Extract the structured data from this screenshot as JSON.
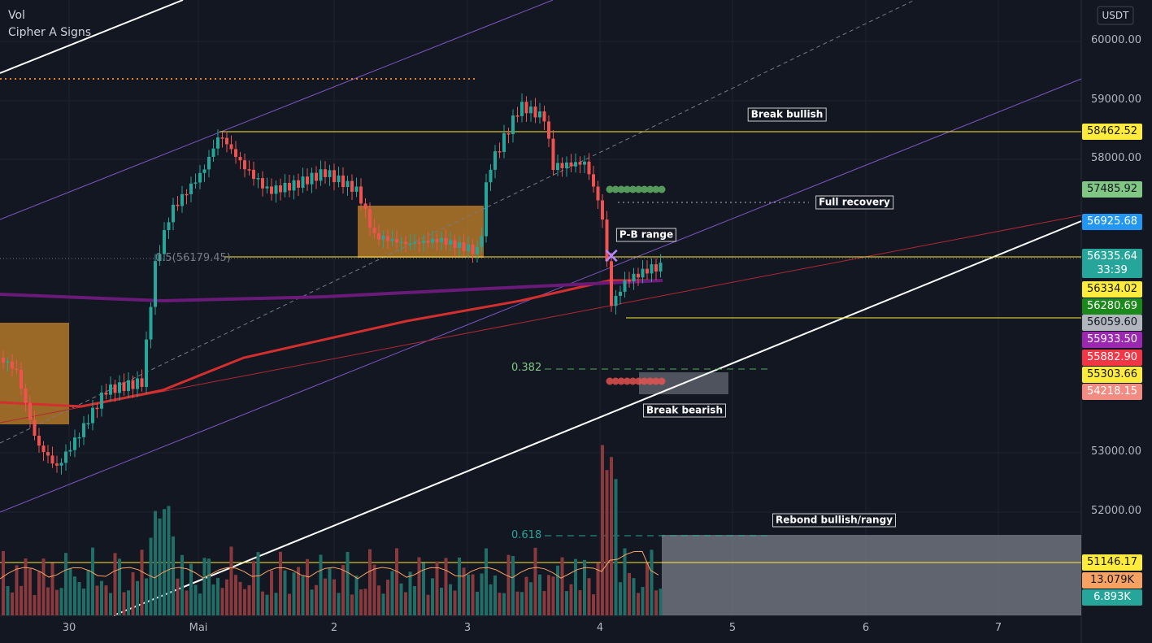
{
  "header": {
    "indicators": [
      "Vol",
      "Cipher A Signs"
    ],
    "currency": "USDT"
  },
  "price_axis": {
    "ticks": [
      "60000.00",
      "59000.00",
      "58000.00",
      "53000.00",
      "52000.00"
    ],
    "labels": [
      "58462.52",
      "57485.92",
      "56925.68",
      "56335.64",
      "56334.02",
      "56280.69",
      "56059.60",
      "55933.50",
      "55882.90",
      "55303.66",
      "54218.15",
      "51146.17",
      "13.079K",
      "6.893K"
    ],
    "countdown": "33:39"
  },
  "time_axis": [
    "30",
    "Mai",
    "2",
    "3",
    "4",
    "5",
    "6",
    "7"
  ],
  "annotations": {
    "break_bullish": "Break bullish",
    "full_recovery": "Full recovery",
    "pb_range": "P-B range",
    "break_bearish": "Break bearish",
    "rebound": "Rebond bullish/rangy"
  },
  "fibonacci": {
    "level_382": "0.382",
    "level_618": "0.618",
    "level_05": "0.5(56179.45)"
  }
}
